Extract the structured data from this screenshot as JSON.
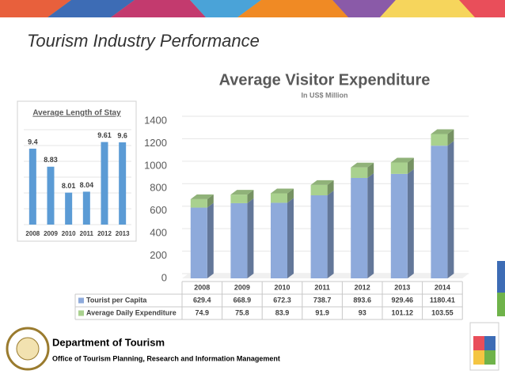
{
  "title": "Tourism Industry Performance",
  "chart_data": [
    {
      "type": "bar",
      "stacked": true,
      "title": "Average Visitor Expenditure",
      "subtitle": "In US$ Million",
      "categories": [
        "2008",
        "2009",
        "2010",
        "2011",
        "2012",
        "2013",
        "2014"
      ],
      "series": [
        {
          "name": "Tourist per Capita",
          "color": "#8eaadb",
          "values": [
            629.4,
            668.9,
            672.3,
            738.7,
            893.6,
            929.46,
            1180.41
          ]
        },
        {
          "name": "Average Daily Expenditure",
          "color": "#a9d18e",
          "values": [
            74.9,
            75.8,
            83.9,
            91.9,
            93,
            101.12,
            103.55
          ]
        }
      ],
      "ylim": [
        0,
        1400
      ],
      "yticks": [
        0,
        200,
        400,
        600,
        800,
        1000,
        1200,
        1400
      ],
      "grid": true,
      "legend": "table"
    },
    {
      "type": "bar",
      "title": "Average Length of Stay",
      "categories": [
        "2008",
        "2009",
        "2010",
        "2011",
        "2012",
        "2013"
      ],
      "values": [
        9.4,
        8.83,
        8.01,
        8.04,
        9.61,
        9.6
      ],
      "color": "#5b9bd5",
      "ylim": [
        7,
        10
      ]
    }
  ],
  "footer": {
    "department": "Department of Tourism",
    "office": "Office of Tourism Planning, Research and Information Management"
  }
}
